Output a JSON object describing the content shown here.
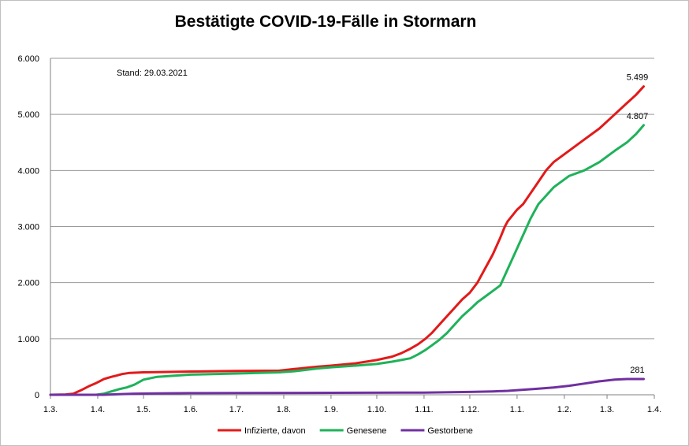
{
  "chart_data": {
    "type": "line",
    "title": "Bestätigte COVID-19-Fälle in Stormarn",
    "stand": "Stand: 29.03.2021",
    "xlabel": "",
    "ylabel": "",
    "x_ticks": [
      "1.3.",
      "1.4.",
      "1.5.",
      "1.6.",
      "1.7.",
      "1.8.",
      "1.9.",
      "1.10.",
      "1.11.",
      "1.12.",
      "1.1.",
      "1.2.",
      "1.3.",
      "1.4."
    ],
    "x_tick_days": [
      0,
      31,
      61,
      92,
      122,
      153,
      184,
      214,
      245,
      275,
      306,
      337,
      365,
      396
    ],
    "y_ticks": [
      "0",
      "1.000",
      "2.000",
      "3.000",
      "4.000",
      "5.000",
      "6.000"
    ],
    "ylim": [
      0,
      6000
    ],
    "grid": "horizontal",
    "legend_position": "bottom",
    "series": [
      {
        "name": "Infizierte, davon",
        "color": "#e21a1a",
        "end_label": "5.499",
        "x": [
          0,
          10,
          15,
          20,
          25,
          30,
          35,
          40,
          43,
          47,
          52,
          61,
          70,
          92,
          122,
          150,
          160,
          175,
          184,
          200,
          214,
          224,
          230,
          236,
          241,
          246,
          250,
          255,
          260,
          265,
          270,
          275,
          280,
          285,
          290,
          295,
          298,
          300,
          303,
          306,
          310,
          315,
          320,
          325,
          330,
          340,
          350,
          360,
          370,
          378,
          384,
          389
        ],
        "values": [
          0,
          5,
          20,
          80,
          150,
          210,
          280,
          320,
          340,
          370,
          390,
          400,
          405,
          415,
          425,
          430,
          460,
          500,
          520,
          560,
          620,
          680,
          740,
          820,
          900,
          1000,
          1100,
          1250,
          1400,
          1550,
          1700,
          1820,
          2000,
          2250,
          2500,
          2800,
          3000,
          3100,
          3200,
          3300,
          3400,
          3600,
          3800,
          4000,
          4150,
          4350,
          4550,
          4750,
          5000,
          5200,
          5350,
          5499
        ]
      },
      {
        "name": "Genesene",
        "color": "#1fb25a",
        "end_label": "4.807",
        "x": [
          0,
          30,
          35,
          40,
          45,
          50,
          55,
          61,
          70,
          92,
          122,
          150,
          160,
          175,
          184,
          200,
          214,
          224,
          230,
          236,
          241,
          246,
          250,
          255,
          260,
          265,
          270,
          275,
          280,
          285,
          290,
          295,
          300,
          305,
          310,
          315,
          320,
          325,
          330,
          340,
          350,
          360,
          370,
          378,
          384,
          389
        ],
        "values": [
          0,
          0,
          20,
          60,
          100,
          130,
          180,
          270,
          320,
          360,
          380,
          400,
          420,
          470,
          490,
          520,
          550,
          590,
          620,
          650,
          720,
          800,
          880,
          980,
          1100,
          1250,
          1400,
          1520,
          1650,
          1750,
          1850,
          1950,
          2250,
          2550,
          2850,
          3150,
          3400,
          3550,
          3700,
          3900,
          4000,
          4150,
          4350,
          4500,
          4650,
          4807
        ]
      },
      {
        "name": "Gestorbene",
        "color": "#7030a0",
        "end_label": "281",
        "x": [
          0,
          35,
          45,
          55,
          70,
          92,
          122,
          184,
          245,
          275,
          290,
          300,
          310,
          320,
          330,
          340,
          350,
          360,
          370,
          378,
          389
        ],
        "values": [
          0,
          0,
          10,
          20,
          25,
          30,
          32,
          35,
          40,
          50,
          60,
          70,
          90,
          110,
          130,
          160,
          200,
          240,
          270,
          281,
          281
        ]
      }
    ]
  }
}
